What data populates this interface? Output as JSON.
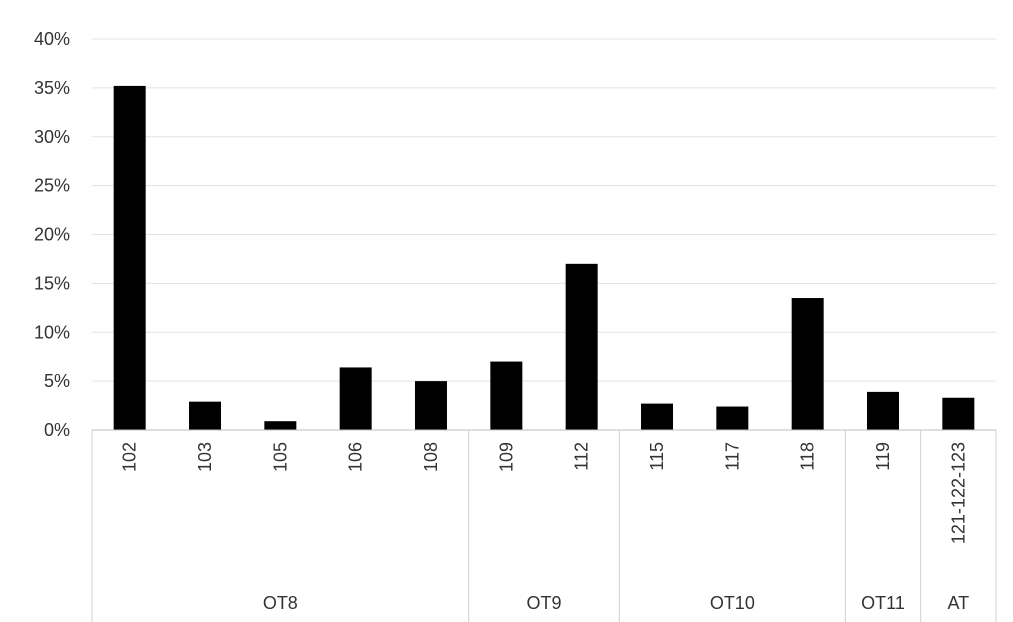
{
  "chart_data": {
    "type": "bar",
    "categories": [
      "102",
      "103",
      "105",
      "106",
      "108",
      "109",
      "112",
      "115",
      "117",
      "118",
      "119",
      "121-122-123"
    ],
    "values": [
      35.2,
      2.9,
      0.9,
      6.4,
      5.0,
      7.0,
      17.0,
      2.7,
      2.4,
      13.5,
      3.9,
      3.3
    ],
    "groups": [
      {
        "label": "OT8",
        "count": 5
      },
      {
        "label": "OT9",
        "count": 2
      },
      {
        "label": "OT10",
        "count": 3
      },
      {
        "label": "OT11",
        "count": 1
      },
      {
        "label": "AT",
        "count": 1
      }
    ],
    "yticks": [
      "0%",
      "5%",
      "10%",
      "15%",
      "20%",
      "25%",
      "30%",
      "35%",
      "40%"
    ],
    "ylim": [
      0,
      40
    ],
    "bar_color": "#000000",
    "grid": true,
    "title": "",
    "xlabel": "",
    "ylabel": ""
  }
}
